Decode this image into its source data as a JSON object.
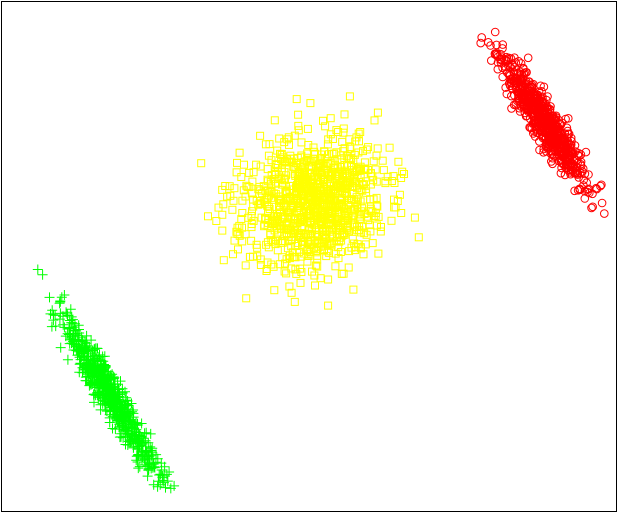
{
  "chart_data": {
    "type": "scatter",
    "xlim": [
      0,
      1
    ],
    "ylim": [
      0,
      1
    ],
    "grid": false,
    "legend": "none",
    "axes_visible": false,
    "series": [
      {
        "marker": "circle",
        "color": "#ff0000",
        "cluster": {
          "count": 700,
          "center": [
            0.885,
            0.77
          ],
          "major_sd": 0.068,
          "minor_sd": 0.012,
          "slope": -1.9,
          "seed": 11
        }
      },
      {
        "marker": "square",
        "color": "#ffff00",
        "cluster": {
          "count": 1000,
          "center": [
            0.505,
            0.605
          ],
          "sd": [
            0.058,
            0.065
          ],
          "rho": 0.1,
          "seed": 23
        }
      },
      {
        "marker": "plus",
        "color": "#00ff00",
        "cluster": {
          "count": 700,
          "center": [
            0.175,
            0.225
          ],
          "major_sd": 0.085,
          "minor_sd": 0.011,
          "slope": -2.05,
          "seed": 37
        }
      }
    ]
  }
}
